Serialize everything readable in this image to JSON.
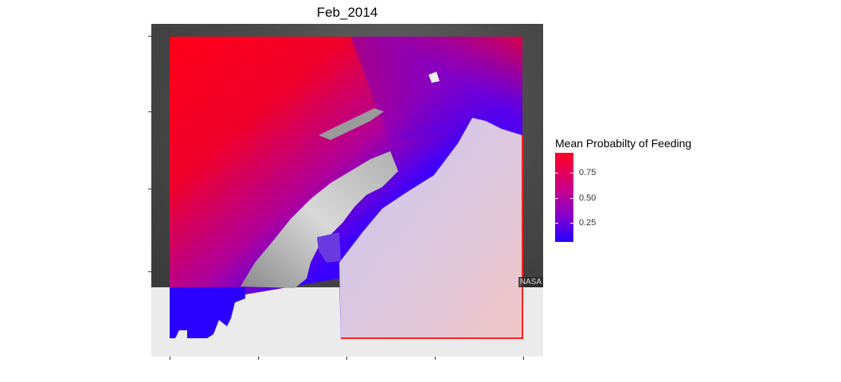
{
  "plot": {
    "title": "Feb_2014",
    "attribution": "NASA"
  },
  "legend": {
    "title": "Mean Probabilty of Feeding",
    "labels": [
      "0.75",
      "0.50",
      "0.25"
    ],
    "colors": {
      "high": "#ff0022",
      "mid": "#8800cc",
      "low": "#2200ff"
    }
  }
}
